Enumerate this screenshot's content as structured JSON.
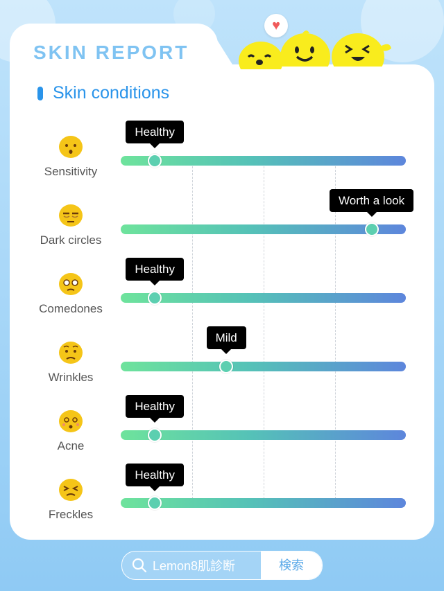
{
  "header": {
    "title": "SKIN REPORT"
  },
  "section": {
    "title": "Skin conditions"
  },
  "conditions": [
    {
      "label": "Sensitivity",
      "status": "Healthy",
      "level": 0.12
    },
    {
      "label": "Dark circles",
      "status": "Worth a look",
      "level": 0.88
    },
    {
      "label": "Comedones",
      "status": "Healthy",
      "level": 0.12
    },
    {
      "label": "Wrinkles",
      "status": "Mild",
      "level": 0.37
    },
    {
      "label": "Acne",
      "status": "Healthy",
      "level": 0.12
    },
    {
      "label": "Freckles",
      "status": "Healthy",
      "level": 0.12
    }
  ],
  "search": {
    "query": "Lemon8肌診断",
    "button_label": "検索"
  },
  "colors": {
    "accent": "#2a94ea",
    "title": "#7fc3f2",
    "track_start": "#6ee39c",
    "track_end": "#5d86dc",
    "mascot": "#f9ec1d",
    "heart": "#f05a5a"
  },
  "icons": [
    "heart-icon",
    "lemon-mascot-icon",
    "search-icon"
  ]
}
